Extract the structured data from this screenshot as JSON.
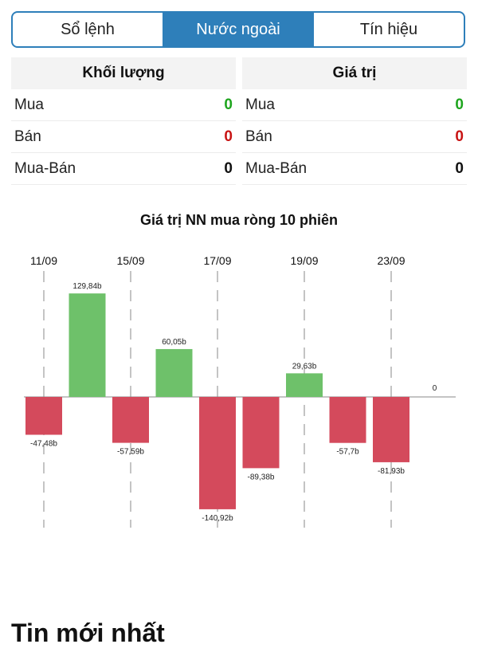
{
  "tabs": [
    {
      "label": "Sổ lệnh",
      "active": false
    },
    {
      "label": "Nước ngoài",
      "active": true
    },
    {
      "label": "Tín hiệu",
      "active": false
    }
  ],
  "volume_table": {
    "header": "Khối lượng",
    "rows": [
      {
        "label": "Mua",
        "value": "0"
      },
      {
        "label": "Bán",
        "value": "0"
      },
      {
        "label": "Mua-Bán",
        "value": "0"
      }
    ]
  },
  "value_table": {
    "header": "Giá trị",
    "rows": [
      {
        "label": "Mua",
        "value": "0"
      },
      {
        "label": "Bán",
        "value": "0"
      },
      {
        "label": "Mua-Bán",
        "value": "0"
      }
    ]
  },
  "colors": {
    "accent": "#2e7fba",
    "positive": "#6ec16a",
    "negative": "#d44a5c",
    "buy_text": "#1ea51e",
    "sell_text": "#c81414"
  },
  "chart_data": {
    "type": "bar",
    "title": "Giá trị NN mua ròng 10 phiên",
    "date_labels": [
      "11/09",
      "15/09",
      "17/09",
      "19/09",
      "23/09"
    ],
    "values": [
      -47.48,
      129.84,
      -57.59,
      60.05,
      -140.92,
      -89.38,
      29.63,
      -57.7,
      -81.93,
      0
    ],
    "value_labels": [
      "-47,48b",
      "129,84b",
      "-57,59b",
      "60,05b",
      "-140,92b",
      "-89,38b",
      "29,63b",
      "-57,7b",
      "-81,93b",
      "0"
    ],
    "grid": "dashed vertical lines at date labels"
  },
  "news": {
    "title": "Tin mới nhất"
  }
}
